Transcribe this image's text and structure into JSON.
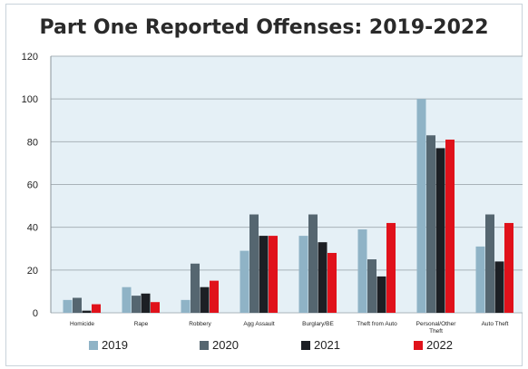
{
  "chart_data": {
    "type": "bar",
    "title": "Part One Reported Offenses: 2019-2022",
    "xlabel": "",
    "ylabel": "",
    "ylim": [
      0,
      120
    ],
    "yticks": [
      0,
      20,
      40,
      60,
      80,
      100,
      120
    ],
    "grid": true,
    "legend_position": "bottom",
    "categories": [
      [
        "Homicide"
      ],
      [
        "Rape"
      ],
      [
        "Robbery"
      ],
      [
        "Agg Assault"
      ],
      [
        "Burglary/BE"
      ],
      [
        "Theft from Auto"
      ],
      [
        "Personal/Other",
        "Theft"
      ],
      [
        "Auto Theft"
      ]
    ],
    "series": [
      {
        "name": "2019",
        "color": "#8fb3c6",
        "values": [
          6,
          12,
          6,
          29,
          36,
          39,
          100,
          31
        ]
      },
      {
        "name": "2020",
        "color": "#556670",
        "values": [
          7,
          8,
          23,
          46,
          46,
          25,
          83,
          46
        ]
      },
      {
        "name": "2021",
        "color": "#1c1f24",
        "values": [
          1,
          9,
          12,
          36,
          33,
          17,
          77,
          24
        ]
      },
      {
        "name": "2022",
        "color": "#e0121b",
        "values": [
          4,
          5,
          15,
          36,
          28,
          42,
          81,
          42
        ]
      }
    ]
  }
}
